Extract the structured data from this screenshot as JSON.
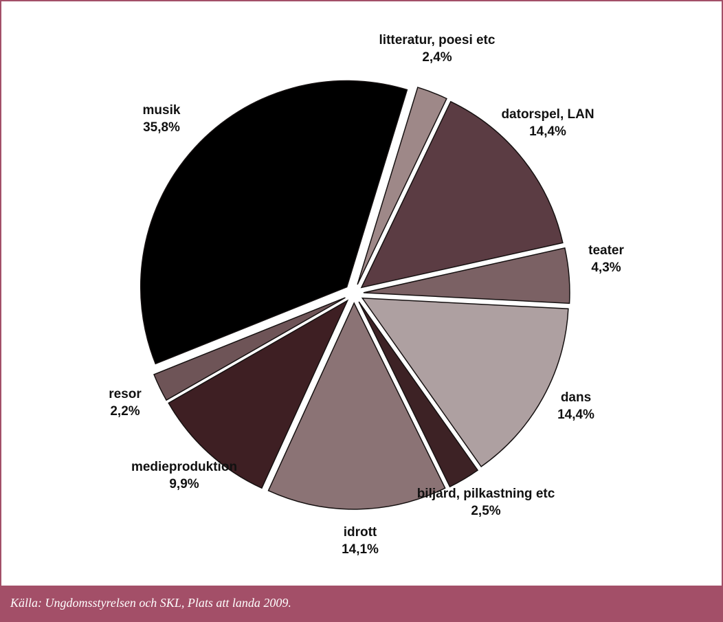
{
  "chart_data": {
    "type": "pie",
    "title": "",
    "unit": "%",
    "exploded": true,
    "slices": [
      {
        "label": "litteratur, poesi etc",
        "value_label": "2,4%",
        "value": 2.4,
        "color": "#9e8888"
      },
      {
        "label": "datorspel, LAN",
        "value_label": "14,4%",
        "value": 14.4,
        "color": "#5b3c43"
      },
      {
        "label": "teater",
        "value_label": "4,3%",
        "value": 4.3,
        "color": "#7b6164"
      },
      {
        "label": "dans",
        "value_label": "14,4%",
        "value": 14.4,
        "color": "#aea0a1"
      },
      {
        "label": "biljard, pilkastning etc",
        "value_label": "2,5%",
        "value": 2.5,
        "color": "#3d2225"
      },
      {
        "label": "idrott",
        "value_label": "14,1%",
        "value": 14.1,
        "color": "#8b7375"
      },
      {
        "label": "medieproduktion",
        "value_label": "9,9%",
        "value": 9.9,
        "color": "#3e1f23"
      },
      {
        "label": "resor",
        "value_label": "2,2%",
        "value": 2.2,
        "color": "#6e5457"
      },
      {
        "label": "musik",
        "value_label": "35,8%",
        "value": 35.8,
        "color": "#000000"
      }
    ]
  },
  "source": "Källa: Ungdomsstyrelsen och SKL, Plats att landa 2009."
}
